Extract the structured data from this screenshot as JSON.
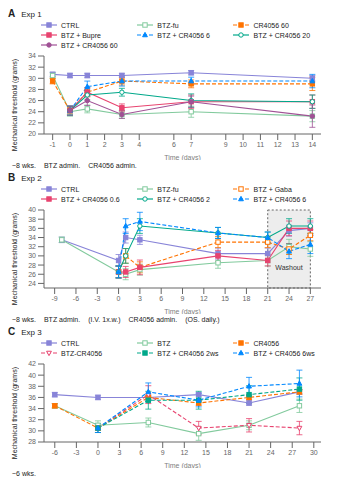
{
  "chart_data": [
    {
      "type": "line",
      "title": "A",
      "subtitle": "Exp 1",
      "x_label": "Time (days)",
      "y_label": "Mechanical threshold (grams)",
      "grid": false,
      "xlim": [
        -1.5,
        14.5
      ],
      "xticks": [
        -1,
        0,
        1,
        2,
        3,
        4,
        6,
        7,
        9,
        10,
        11,
        12,
        13,
        14
      ],
      "ylim": [
        20,
        34
      ],
      "yticks": [
        20,
        22,
        24,
        26,
        28,
        30,
        32,
        34
      ],
      "annotations": [
        {
          "text": "~8 wks."
        },
        {
          "text": "BTZ admin."
        },
        {
          "text": "CR4056 admin."
        }
      ],
      "series": [
        {
          "name": "CTRL",
          "color": "#8884d8",
          "marker": "square",
          "line_style": "solid",
          "x": [
            -1,
            0,
            1,
            3,
            7,
            14
          ],
          "values": [
            30.7,
            30.5,
            30.5,
            30.5,
            31.0,
            30.0
          ],
          "errors": [
            0.4,
            0.4,
            0.4,
            0.4,
            0.4,
            0.5
          ]
        },
        {
          "name": "BTZ-fu",
          "color": "#82ca9d",
          "marker": "square-open",
          "line_style": "solid",
          "x": [
            -1,
            0,
            1,
            3,
            7,
            14
          ],
          "values": [
            30.5,
            24.0,
            24.5,
            23.5,
            24.0,
            23.2
          ],
          "errors": [
            0.5,
            0.8,
            0.7,
            0.7,
            1.0,
            1.0
          ]
        },
        {
          "name": "CR4056 60",
          "color": "#ff7300",
          "marker": "square",
          "line_style": "dashed",
          "x": [
            -1,
            0,
            1,
            3,
            7,
            14
          ],
          "values": [
            29.5,
            24.2,
            27.5,
            29.5,
            29.0,
            29.0
          ],
          "errors": [
            0.5,
            0.8,
            0.8,
            0.7,
            0.7,
            1.2
          ]
        },
        {
          "name": "BTZ + Bupre",
          "color": "#e8436f",
          "marker": "square",
          "line_style": "solid",
          "x": [
            0,
            1,
            3,
            7,
            14
          ],
          "values": [
            24.2,
            27.5,
            24.7,
            25.8,
            25.8
          ],
          "errors": [
            0.8,
            0.8,
            0.7,
            1.2,
            1.2
          ]
        },
        {
          "name": "BTZ + CR4056 6",
          "color": "#0088fe",
          "marker": "triangle-up",
          "line_style": "dashed",
          "x": [
            0,
            1,
            3,
            7,
            14
          ],
          "values": [
            24.2,
            28.5,
            29.5,
            29.5,
            29.5
          ],
          "errors": [
            0.8,
            1.0,
            0.9,
            0.7,
            1.2
          ]
        },
        {
          "name": "BTZ + CR4056 20",
          "color": "#00a88a",
          "marker": "circle-open",
          "line_style": "solid",
          "x": [
            0,
            1,
            3,
            7,
            14
          ],
          "values": [
            24.2,
            27.0,
            27.5,
            26.0,
            25.8
          ],
          "errors": [
            0.8,
            0.9,
            0.7,
            1.2,
            1.2
          ]
        },
        {
          "name": "BTZ + CR4056 60",
          "color": "#a05195",
          "marker": "circle",
          "line_style": "solid",
          "x": [
            0,
            1,
            3,
            7,
            14
          ],
          "values": [
            24.2,
            26.0,
            23.5,
            25.8,
            23.2
          ],
          "errors": [
            0.8,
            0.9,
            0.7,
            1.0,
            2.0
          ]
        }
      ]
    },
    {
      "type": "line",
      "title": "B",
      "subtitle": "Exp 2",
      "x_label": "Time (days)",
      "y_label": "Mechanical threshold (grams)",
      "grid": false,
      "xlim": [
        -10.5,
        28.5
      ],
      "xticks": [
        -9,
        -6,
        -3,
        0,
        3,
        6,
        9,
        12,
        15,
        18,
        21,
        24,
        27
      ],
      "ylim": [
        23,
        40
      ],
      "yticks": [
        24,
        26,
        28,
        30,
        32,
        34,
        36,
        38,
        40
      ],
      "washout_x": [
        21,
        27
      ],
      "annotations": [
        {
          "text": "Washout",
          "x": 24,
          "y": 27.5
        },
        {
          "text": "~8 wks."
        },
        {
          "text": "BTZ admin."
        },
        {
          "text": "(I.V. 1x.w.)"
        },
        {
          "text": "CR4056 admin."
        },
        {
          "text": "(OS. daily.)"
        }
      ],
      "series": [
        {
          "name": "CTRL",
          "color": "#8884d8",
          "marker": "square",
          "line_style": "solid",
          "x": [
            -8,
            0,
            1,
            3,
            14,
            21,
            24,
            27
          ],
          "values": [
            33.5,
            29.0,
            34.0,
            33.5,
            30.5,
            30.5,
            35.5,
            36.0
          ],
          "errors": [
            0.6,
            1.3,
            1.2,
            1.0,
            1.2,
            1.2,
            1.2,
            1.2
          ]
        },
        {
          "name": "BTZ-fu",
          "color": "#82ca9d",
          "marker": "square-open",
          "line_style": "solid",
          "x": [
            -8,
            0,
            1,
            3,
            14,
            21,
            24,
            27
          ],
          "values": [
            33.5,
            26.5,
            26.0,
            27.0,
            28.5,
            29.0,
            32.0,
            31.5
          ],
          "errors": [
            0.6,
            1.3,
            1.2,
            1.2,
            1.2,
            1.2,
            1.6,
            1.6
          ]
        },
        {
          "name": "BTZ + Gaba",
          "color": "#ff7300",
          "marker": "square-open",
          "line_style": "dashed",
          "x": [
            0,
            1,
            3,
            14,
            21,
            24,
            27
          ],
          "values": [
            26.5,
            30.0,
            27.5,
            33.0,
            33.0,
            31.5,
            34.5
          ],
          "errors": [
            1.3,
            1.6,
            1.2,
            1.2,
            1.2,
            1.2,
            1.2
          ]
        },
        {
          "name": "BTZ + CR4056 0.6",
          "color": "#e8436f",
          "marker": "square",
          "line_style": "solid",
          "x": [
            0,
            1,
            3,
            14,
            21,
            24,
            27
          ],
          "values": [
            26.5,
            26.5,
            27.5,
            30.0,
            29.0,
            36.0,
            36.0
          ],
          "errors": [
            1.3,
            1.2,
            1.6,
            1.2,
            1.2,
            1.6,
            1.6
          ]
        },
        {
          "name": "BTZ + CR4056 2",
          "color": "#00a88a",
          "marker": "circle-open",
          "line_style": "solid",
          "x": [
            0,
            1,
            3,
            14,
            21,
            24,
            27
          ],
          "values": [
            26.5,
            30.0,
            36.5,
            35.0,
            34.0,
            36.5,
            36.5
          ],
          "errors": [
            1.3,
            1.6,
            1.6,
            1.2,
            1.2,
            1.6,
            1.6
          ]
        },
        {
          "name": "BTZ + CR4056 6",
          "color": "#0088fe",
          "marker": "triangle-up",
          "line_style": "dashed",
          "x": [
            0,
            1,
            3,
            14,
            21,
            24,
            27
          ],
          "values": [
            26.5,
            36.5,
            37.5,
            35.0,
            34.0,
            31.0,
            32.5
          ],
          "errors": [
            1.3,
            1.6,
            2.0,
            1.2,
            1.2,
            1.6,
            2.0
          ]
        }
      ]
    },
    {
      "type": "line",
      "title": "C",
      "subtitle": "Exp 3",
      "x_label": "Time (days)",
      "y_label": "Mechanical threshold (grams)",
      "grid": false,
      "xlim": [
        -7.5,
        31.0
      ],
      "xticks": [
        -6,
        -3,
        0,
        3,
        6,
        9,
        12,
        15,
        18,
        21,
        24,
        27,
        30
      ],
      "ylim": [
        28,
        42
      ],
      "yticks": [
        28,
        30,
        32,
        34,
        36,
        38,
        40,
        42
      ],
      "annotations": [
        {
          "text": "~6 wks."
        }
      ],
      "series": [
        {
          "name": "CTRL",
          "color": "#8884d8",
          "marker": "square",
          "line_style": "solid",
          "x": [
            -6,
            0,
            7,
            14,
            21,
            28
          ],
          "values": [
            36.5,
            36.0,
            36.0,
            36.5,
            35.0,
            37.0
          ],
          "errors": [
            0.4,
            0.4,
            0.4,
            0.4,
            0.4,
            0.4
          ]
        },
        {
          "name": "BTZ",
          "color": "#82ca9d",
          "marker": "square-open",
          "line_style": "solid",
          "x": [
            -6,
            0,
            7,
            14,
            21,
            28
          ],
          "values": [
            34.5,
            31.0,
            31.5,
            29.5,
            31.0,
            34.5
          ],
          "errors": [
            0.4,
            0.8,
            0.8,
            1.2,
            0.8,
            1.2
          ]
        },
        {
          "name": "CR4056",
          "color": "#ff7300",
          "marker": "square",
          "line_style": "dashed",
          "x": [
            -6,
            0,
            7,
            14,
            21,
            28
          ],
          "values": [
            34.5,
            30.5,
            36.0,
            35.0,
            36.0,
            37.0
          ],
          "errors": [
            0.4,
            0.4,
            0.4,
            0.4,
            0.4,
            0.4
          ]
        },
        {
          "name": "BTZ-CR4056",
          "color": "#e8436f",
          "marker": "triangle-down-open",
          "line_style": "dashed",
          "x": [
            0,
            7,
            14,
            21,
            28
          ],
          "values": [
            30.5,
            36.5,
            30.5,
            31.0,
            30.5
          ],
          "errors": [
            0.8,
            1.6,
            1.2,
            1.2,
            1.2
          ]
        },
        {
          "name": "BTZ + CR4056 2ws",
          "color": "#00a88a",
          "marker": "square",
          "line_style": "dashed",
          "x": [
            0,
            7,
            14,
            21,
            28
          ],
          "values": [
            30.5,
            35.5,
            35.5,
            36.5,
            37.5
          ],
          "errors": [
            0.8,
            1.6,
            1.6,
            1.6,
            2.0
          ]
        },
        {
          "name": "BTZ + CR4056 6ws",
          "color": "#0088fe",
          "marker": "triangle-up",
          "line_style": "dashed",
          "x": [
            0,
            7,
            14,
            21,
            28
          ],
          "values": [
            30.5,
            37.0,
            35.5,
            38.0,
            38.5
          ],
          "errors": [
            0.8,
            1.6,
            1.2,
            1.6,
            2.4
          ]
        }
      ]
    }
  ]
}
